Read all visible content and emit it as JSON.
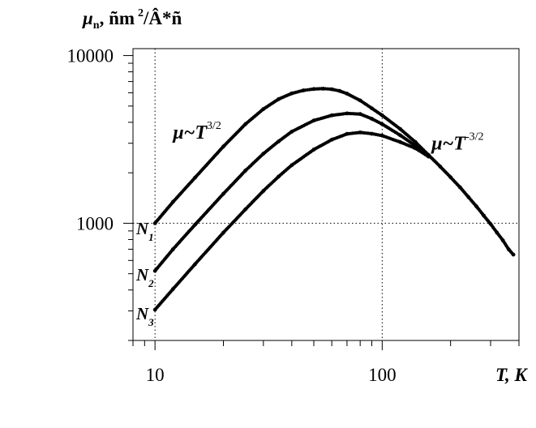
{
  "chart_data": {
    "type": "scatter",
    "title": "",
    "ylabel": {
      "symbol": "μ",
      "subscript": "n",
      "units_garbled": ", ñm",
      "sup": "2",
      "rest": "/Â*ñ"
    },
    "xlabel": "T, K",
    "xscale": "log",
    "yscale": "log",
    "xlim": [
      8,
      400
    ],
    "ylim": [
      200,
      11000
    ],
    "x_ticks": [
      10,
      100
    ],
    "x_tick_labels": [
      "10",
      "100"
    ],
    "y_ticks": [
      1000,
      10000
    ],
    "y_tick_labels": [
      "1000",
      "10000"
    ],
    "reference_lines": {
      "x": [
        10,
        100
      ],
      "y": [
        1000
      ]
    },
    "series": [
      {
        "name": "N1",
        "marker": "filled",
        "points": [
          [
            10,
            1000
          ],
          [
            12,
            1340
          ],
          [
            15,
            1870
          ],
          [
            20,
            2870
          ],
          [
            25,
            3900
          ],
          [
            30,
            4800
          ],
          [
            35,
            5500
          ],
          [
            40,
            5950
          ],
          [
            45,
            6200
          ],
          [
            50,
            6320
          ],
          [
            55,
            6350
          ],
          [
            60,
            6300
          ],
          [
            65,
            6150
          ],
          [
            70,
            5930
          ],
          [
            80,
            5400
          ],
          [
            90,
            4850
          ],
          [
            100,
            4400
          ],
          [
            120,
            3650
          ],
          [
            140,
            3050
          ],
          [
            160,
            2550
          ],
          [
            180,
            2180
          ],
          [
            200,
            1880
          ],
          [
            220,
            1640
          ],
          [
            240,
            1430
          ],
          [
            260,
            1260
          ],
          [
            280,
            1110
          ],
          [
            300,
            990
          ],
          [
            320,
            880
          ],
          [
            340,
            790
          ],
          [
            360,
            700
          ],
          [
            378,
            650
          ]
        ]
      },
      {
        "name": "N2",
        "marker": "filled",
        "points": [
          [
            10,
            520
          ],
          [
            12,
            700
          ],
          [
            15,
            980
          ],
          [
            20,
            1500
          ],
          [
            25,
            2060
          ],
          [
            30,
            2600
          ],
          [
            35,
            3080
          ],
          [
            40,
            3520
          ],
          [
            50,
            4100
          ],
          [
            60,
            4400
          ],
          [
            70,
            4520
          ],
          [
            80,
            4480
          ],
          [
            90,
            4200
          ],
          [
            100,
            3900
          ],
          [
            120,
            3350
          ],
          [
            140,
            2900
          ],
          [
            160,
            2500
          ]
        ]
      },
      {
        "name": "N3",
        "marker": "filled",
        "points": [
          [
            10,
            305
          ],
          [
            12,
            405
          ],
          [
            15,
            570
          ],
          [
            20,
            880
          ],
          [
            25,
            1210
          ],
          [
            30,
            1560
          ],
          [
            35,
            1900
          ],
          [
            40,
            2220
          ],
          [
            50,
            2750
          ],
          [
            60,
            3150
          ],
          [
            70,
            3410
          ],
          [
            80,
            3480
          ],
          [
            90,
            3420
          ],
          [
            100,
            3330
          ],
          [
            120,
            3050
          ],
          [
            140,
            2800
          ],
          [
            160,
            2500
          ]
        ]
      }
    ],
    "annotations": [
      {
        "base": "μ~T",
        "exp": "3/2",
        "at": [
          12,
          3200
        ]
      },
      {
        "base": "μ~T",
        "exp": "-3/2",
        "at": [
          165,
          2750
        ]
      }
    ],
    "curve_labels": [
      {
        "text": "N",
        "sub": "1",
        "at_y": 960
      },
      {
        "text": "N",
        "sub": "2",
        "at_y": 510
      },
      {
        "text": "N",
        "sub": "3",
        "at_y": 298
      }
    ],
    "grid": false,
    "colors": {
      "axis": "#000000",
      "markers": "#000000",
      "dotted": "#000000"
    }
  }
}
